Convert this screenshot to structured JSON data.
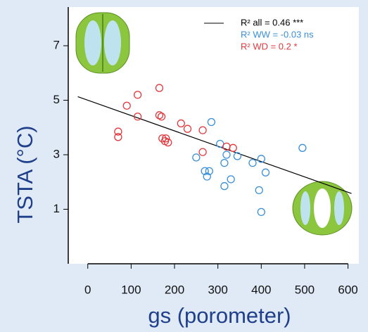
{
  "chart_data": {
    "type": "scatter",
    "x_label": "gs (porometer)",
    "y_label": "TSTA (°C)",
    "xlim": [
      -45,
      625
    ],
    "ylim": [
      -1,
      8.42
    ],
    "xticks": [
      0,
      100,
      200,
      300,
      400,
      500,
      600
    ],
    "yticks": [
      1,
      3,
      5,
      7
    ],
    "fit": {
      "name": "R² all =  0.46 ***",
      "color": "#000000",
      "x": [
        -23,
        608
      ],
      "values": [
        5.13,
        1.58
      ]
    },
    "series": [
      {
        "name": "R² WW =  -0.03 ns",
        "color": "#3a8fd8",
        "x": [
          250,
          270,
          275,
          280,
          285,
          305,
          315,
          315,
          320,
          330,
          345,
          380,
          395,
          400,
          400,
          410,
          495
        ],
        "values": [
          2.9,
          2.4,
          2.2,
          2.4,
          4.2,
          3.4,
          2.7,
          1.85,
          3.0,
          2.1,
          2.95,
          2.7,
          1.7,
          2.85,
          0.9,
          2.35,
          3.25
        ]
      },
      {
        "name": "R² WD =  0.2 *",
        "color": "#e0393e",
        "x": [
          70,
          70,
          90,
          115,
          115,
          165,
          165,
          170,
          172,
          178,
          180,
          185,
          215,
          230,
          265,
          265,
          320,
          335
        ],
        "values": [
          3.85,
          3.65,
          4.8,
          5.2,
          4.4,
          5.45,
          4.45,
          4.4,
          3.6,
          3.5,
          3.6,
          3.45,
          4.15,
          3.95,
          3.9,
          3.1,
          3.3,
          3.25
        ]
      }
    ]
  }
}
